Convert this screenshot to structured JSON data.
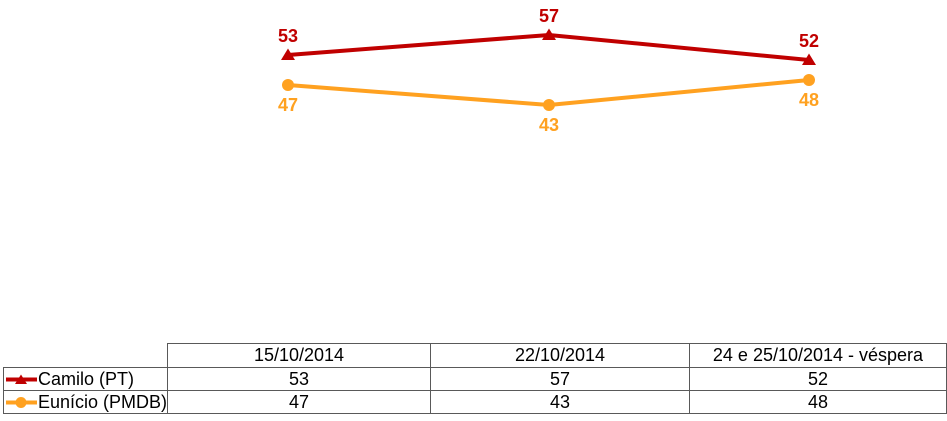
{
  "chart_data": {
    "type": "line",
    "categories": [
      "15/10/2014",
      "22/10/2014",
      "24 e 25/10/2014 - véspera"
    ],
    "series": [
      {
        "name": "Camilo (PT)",
        "values": [
          53,
          57,
          52
        ],
        "color": "#c00000",
        "marker": "triangle",
        "label_position": "above"
      },
      {
        "name": "Eunício (PMDB)",
        "values": [
          47,
          43,
          48
        ],
        "color": "#ffa120",
        "marker": "circle",
        "label_position": "below"
      }
    ],
    "title": "",
    "xlabel": "",
    "ylabel": "",
    "grid": false,
    "axes_visible": false,
    "data_labels": true,
    "legend_position": "table-row-headers",
    "background": "#ffffff",
    "table_border_color": "#595959"
  }
}
